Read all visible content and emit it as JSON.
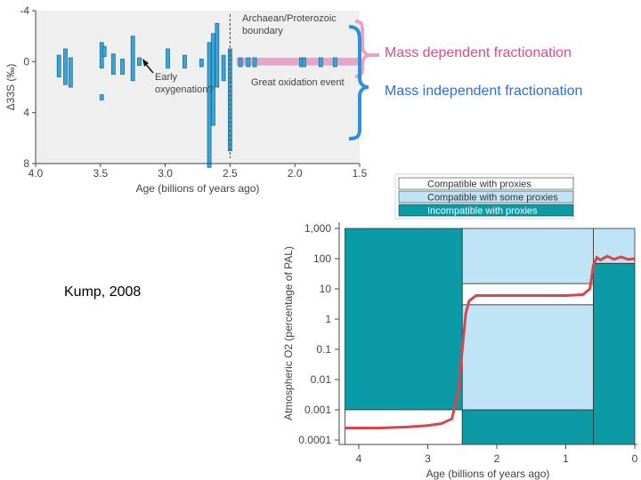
{
  "annotations": {
    "mass_dependent": "Mass dependent fractionation",
    "mass_independent": "Mass independent fractionation",
    "credit": "Kump, 2008"
  },
  "colors": {
    "bar_blue": "#3aa6d8",
    "bar_edge": "#1b6f99",
    "brace_pink": "#e6a5c8",
    "brace_blue": "#2f8fe0",
    "compatible": "#ffffff",
    "some": "#bfe4f5",
    "incompatible": "#0a9ba6",
    "curve": "#d9464a",
    "panel_bg": "#efefef"
  },
  "chart_data": [
    {
      "type": "bar",
      "title": "",
      "xlabel": "Age (billions of years ago)",
      "ylabel": "Δ33S (‰)",
      "xlim": [
        4.0,
        1.5
      ],
      "ylim": [
        -4,
        8
      ],
      "xticks": [
        "4.0",
        "3.5",
        "3.0",
        "2.5",
        "2.0",
        "1.5"
      ],
      "yticks": [
        "-4",
        "0",
        "4",
        "8"
      ],
      "annotations": [
        "Archaean/Proterozoic boundary",
        "Early oxygenation?",
        "Great oxidation event"
      ],
      "boundary_age": 2.5,
      "mdf_band": {
        "x": [
          2.45,
          1.5
        ],
        "y": [
          -0.3,
          0.3
        ]
      },
      "bars": [
        {
          "x": 3.82,
          "y0": -0.5,
          "y1": 1.2
        },
        {
          "x": 3.77,
          "y0": -1.0,
          "y1": 1.8
        },
        {
          "x": 3.73,
          "y0": -0.3,
          "y1": 2.0
        },
        {
          "x": 3.49,
          "y0": -1.5,
          "y1": 0.5
        },
        {
          "x": 3.49,
          "y0": 2.6,
          "y1": 3.0
        },
        {
          "x": 3.47,
          "y0": -1.2,
          "y1": -0.4
        },
        {
          "x": 3.4,
          "y0": -0.6,
          "y1": 1.0
        },
        {
          "x": 3.33,
          "y0": -0.2,
          "y1": 1.0
        },
        {
          "x": 3.25,
          "y0": -2.0,
          "y1": 1.5
        },
        {
          "x": 3.2,
          "y0": -0.3,
          "y1": 0.3
        },
        {
          "x": 2.98,
          "y0": -1.0,
          "y1": 0.5
        },
        {
          "x": 2.85,
          "y0": -0.5,
          "y1": 0.5
        },
        {
          "x": 2.72,
          "y0": -0.2,
          "y1": 0.4
        },
        {
          "x": 2.66,
          "y0": -1.5,
          "y1": 8.3
        },
        {
          "x": 2.63,
          "y0": -2.2,
          "y1": 5.0
        },
        {
          "x": 2.6,
          "y0": -3.0,
          "y1": 2.0
        },
        {
          "x": 2.55,
          "y0": -0.5,
          "y1": 1.5
        },
        {
          "x": 2.5,
          "y0": -1.0,
          "y1": 7.0
        },
        {
          "x": 2.42,
          "y0": -0.3,
          "y1": 0.4
        },
        {
          "x": 2.36,
          "y0": -0.3,
          "y1": 0.4
        },
        {
          "x": 2.31,
          "y0": -0.3,
          "y1": 0.4
        },
        {
          "x": 1.95,
          "y0": -0.3,
          "y1": 0.4
        },
        {
          "x": 1.93,
          "y0": -0.3,
          "y1": 0.4
        },
        {
          "x": 1.8,
          "y0": -0.3,
          "y1": 0.4
        },
        {
          "x": 1.69,
          "y0": -0.3,
          "y1": 0.4
        }
      ]
    },
    {
      "type": "area",
      "title": "",
      "xlabel": "Age (billions of years ago)",
      "ylabel": "Atmospheric O2 (percentage of PAL)",
      "xlim": [
        4,
        0
      ],
      "ylog": true,
      "ylim": [
        0.0001,
        1000
      ],
      "xticks": [
        "4",
        "3",
        "2",
        "1",
        "0"
      ],
      "yticks": [
        "0.0001",
        "0.001",
        "0.01",
        "0.1",
        "1",
        "10",
        "100",
        "1,000"
      ],
      "legend": {
        "position": "top",
        "entries": [
          {
            "label": "Compatible with proxies",
            "category": "compatible"
          },
          {
            "label": "Compatible with some proxies",
            "category": "some"
          },
          {
            "label": "Incompatible with proxies",
            "category": "incompatible"
          }
        ]
      },
      "regions": [
        {
          "x": [
            4.2,
            2.5
          ],
          "y": [
            0.001,
            1000
          ],
          "category": "incompatible"
        },
        {
          "x": [
            4.2,
            2.5
          ],
          "y": [
            5e-05,
            0.001
          ],
          "category": "compatible"
        },
        {
          "x": [
            2.5,
            0.6
          ],
          "y": [
            5e-05,
            0.001
          ],
          "category": "incompatible"
        },
        {
          "x": [
            2.5,
            0.6
          ],
          "y": [
            0.001,
            3
          ],
          "category": "some"
        },
        {
          "x": [
            2.5,
            0.6
          ],
          "y": [
            3,
            15
          ],
          "category": "compatible"
        },
        {
          "x": [
            2.5,
            0.6
          ],
          "y": [
            15,
            1000
          ],
          "category": "some"
        },
        {
          "x": [
            0.6,
            0
          ],
          "y": [
            5e-05,
            70
          ],
          "category": "incompatible"
        },
        {
          "x": [
            0.6,
            0
          ],
          "y": [
            70,
            1000
          ],
          "category": "some"
        }
      ],
      "curve": {
        "x": [
          4.2,
          3.7,
          3.3,
          3.0,
          2.8,
          2.65,
          2.55,
          2.5,
          2.45,
          2.4,
          2.3,
          2.0,
          1.5,
          1.0,
          0.75,
          0.65,
          0.6,
          0.55,
          0.5,
          0.4,
          0.3,
          0.2,
          0.1,
          0.0
        ],
        "y": [
          0.00025,
          0.00025,
          0.00027,
          0.0003,
          0.00035,
          0.0005,
          0.005,
          0.1,
          1.5,
          4,
          6,
          6,
          6,
          6,
          6.5,
          10,
          60,
          110,
          90,
          120,
          95,
          115,
          95,
          100
        ]
      }
    }
  ]
}
